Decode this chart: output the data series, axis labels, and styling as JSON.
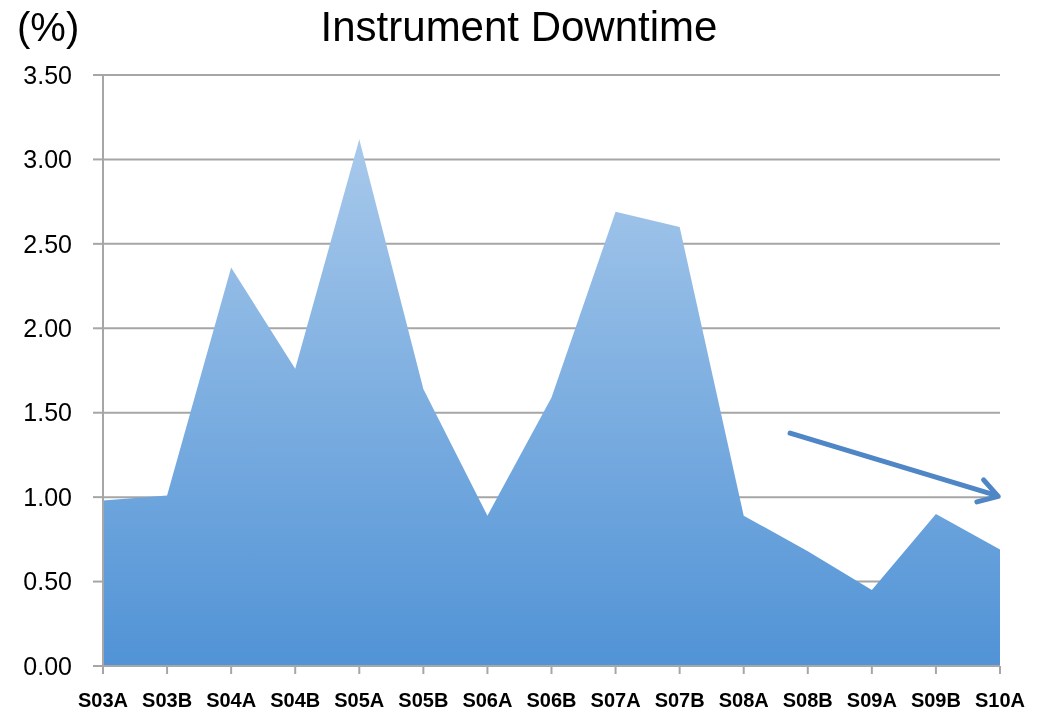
{
  "chart_data": {
    "type": "area",
    "title": "Instrument Downtime",
    "ylabel": "(%)",
    "categories": [
      "S03A",
      "S03B",
      "S04A",
      "S04B",
      "S05A",
      "S05B",
      "S06A",
      "S06B",
      "S07A",
      "S07B",
      "S08A",
      "S08B",
      "S09A",
      "S09B",
      "S10A"
    ],
    "values": [
      0.98,
      1.01,
      2.36,
      1.76,
      3.12,
      1.64,
      0.89,
      1.59,
      2.69,
      2.6,
      0.89,
      0.68,
      0.45,
      0.9,
      0.69
    ],
    "color": "#5193d6",
    "ylim": [
      0,
      3.5
    ],
    "yticks": [
      {
        "value": 0,
        "label": "0.00"
      },
      {
        "value": 0.5,
        "label": "0.50"
      },
      {
        "value": 1,
        "label": "1.00"
      },
      {
        "value": 1.5,
        "label": "1.50"
      },
      {
        "value": 2,
        "label": "2.00"
      },
      {
        "value": 2.5,
        "label": "2.50"
      },
      {
        "value": 3,
        "label": "3.00"
      },
      {
        "value": 3.5,
        "label": "3.50"
      }
    ],
    "grid": "y"
  }
}
